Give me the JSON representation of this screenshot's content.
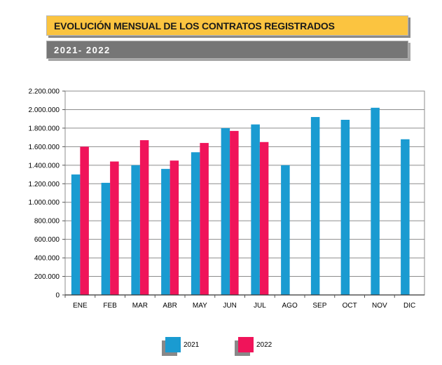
{
  "header": {
    "title": "EVOLUCIÓN MENSUAL DE LOS CONTRATOS REGISTRADOS",
    "subtitle": "2021- 2022"
  },
  "chart_data": {
    "type": "bar",
    "title": "EVOLUCIÓN MENSUAL DE LOS CONTRATOS REGISTRADOS",
    "subtitle": "2021- 2022",
    "xlabel": "",
    "ylabel": "",
    "categories": [
      "ENE",
      "FEB",
      "MAR",
      "ABR",
      "MAY",
      "JUN",
      "JUL",
      "AGO",
      "SEP",
      "OCT",
      "NOV",
      "DIC"
    ],
    "series": [
      {
        "name": "2021",
        "color": "#1a9bd1",
        "values": [
          1300000,
          1210000,
          1400000,
          1360000,
          1540000,
          1800000,
          1840000,
          1400000,
          1920000,
          1890000,
          2020000,
          1680000
        ]
      },
      {
        "name": "2022",
        "color": "#f0145a",
        "values": [
          1600000,
          1440000,
          1670000,
          1450000,
          1640000,
          1770000,
          1650000,
          null,
          null,
          null,
          null,
          null
        ]
      }
    ],
    "yticks": [
      "0",
      "200.000",
      "400.000",
      "600.000",
      "800.000",
      "1.000.000",
      "1.200.000",
      "1.400.000",
      "1.600.000",
      "1.800.000",
      "2.000.000",
      "2.200.000"
    ],
    "ylim": [
      0,
      2200000
    ],
    "grid": true,
    "legend_position": "bottom-center"
  }
}
